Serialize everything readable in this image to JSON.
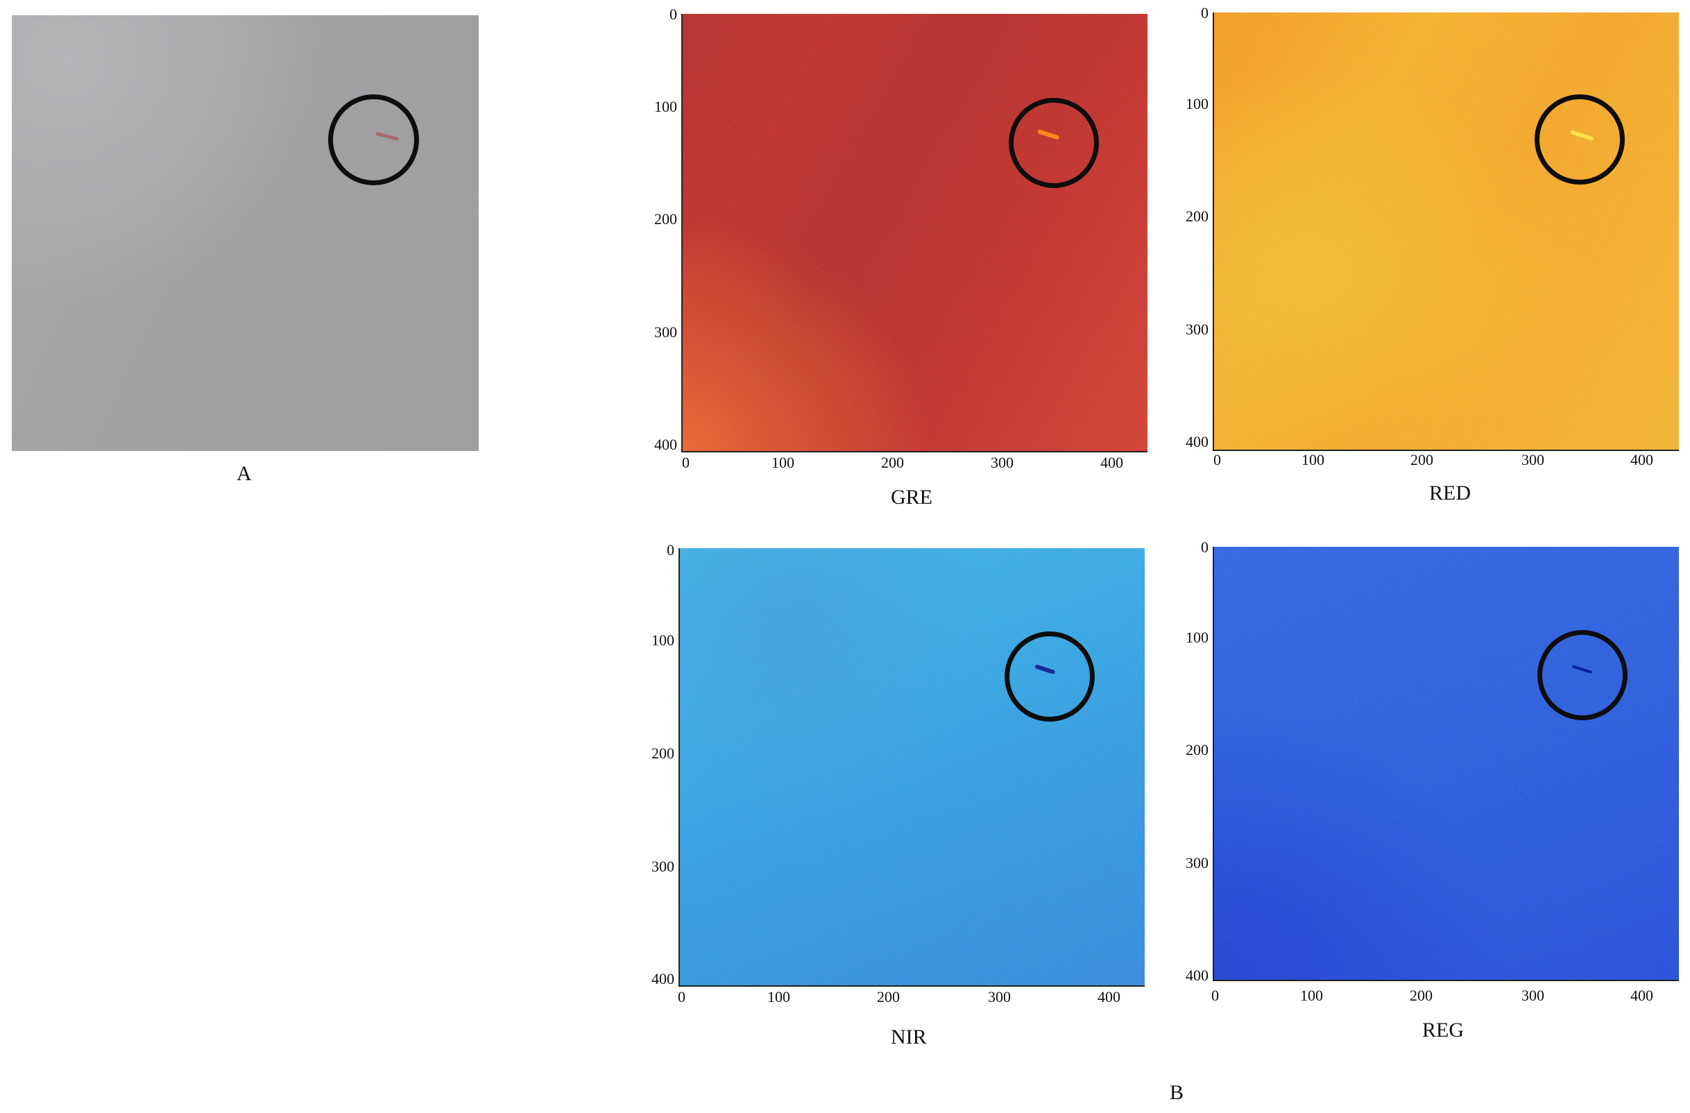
{
  "panels": {
    "photo": {
      "label": "A"
    },
    "gre": {
      "label": "GRE"
    },
    "red": {
      "label": "RED"
    },
    "nir": {
      "label": "NIR"
    },
    "reg": {
      "label": "REG"
    },
    "group_label": "B"
  },
  "axes": {
    "x_ticks": [
      "0",
      "100",
      "200",
      "300",
      "400"
    ],
    "y_ticks": [
      "0",
      "100",
      "200",
      "300",
      "400"
    ]
  },
  "colors": {
    "gre_streak": "#ff8a1e",
    "red_streak": "#ffe14a",
    "nir_streak": "#1a2a9a",
    "reg_streak": "#0a1f9a",
    "photo_streak": "#a86b6e"
  }
}
